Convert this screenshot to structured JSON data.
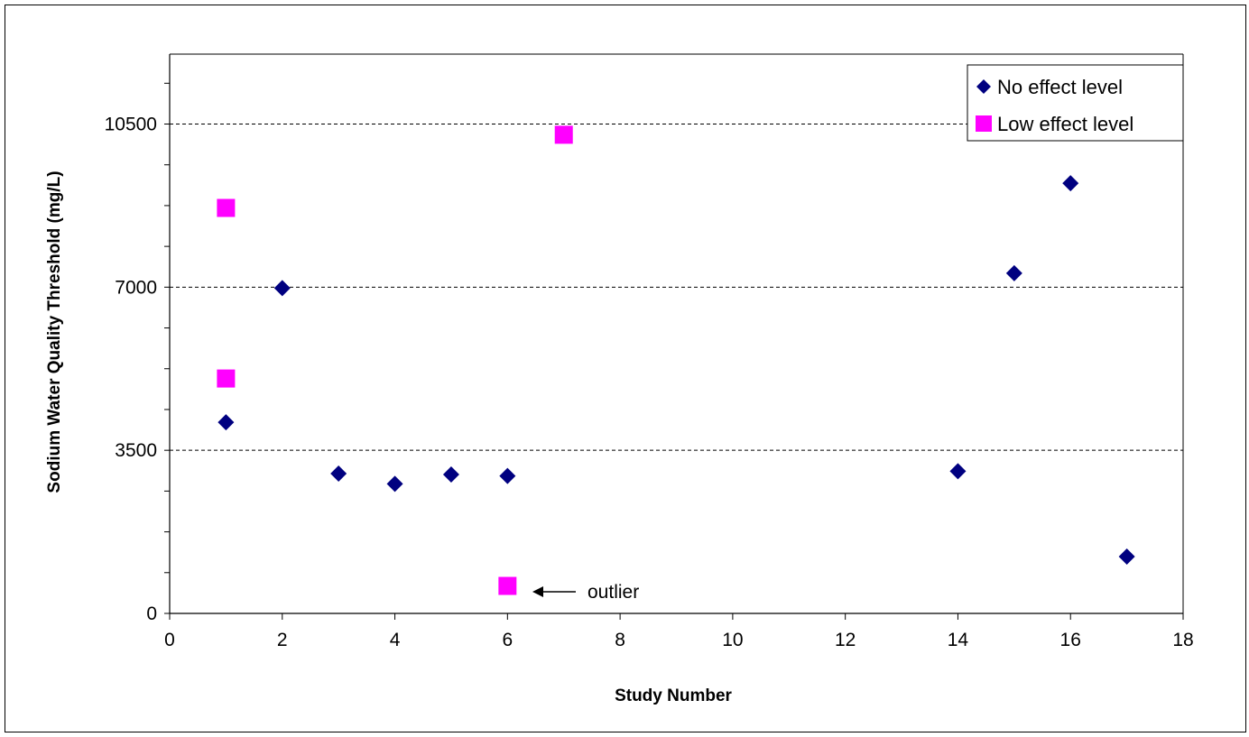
{
  "chart_data": {
    "type": "scatter",
    "title": "",
    "xlabel": "Study Number",
    "ylabel": "Sodium Water Quality Threshold (mg/L)",
    "xlim": [
      0,
      18
    ],
    "ylim": [
      0,
      12000
    ],
    "x_ticks": [
      0,
      2,
      4,
      6,
      8,
      10,
      12,
      14,
      16,
      18
    ],
    "y_ticks": [
      0,
      3500,
      7000,
      10500
    ],
    "x_tick_labels": [
      "0",
      "2",
      "4",
      "6",
      "8",
      "10",
      "12",
      "14",
      "16",
      "18"
    ],
    "y_tick_labels": [
      "0",
      "3500",
      "7000",
      "10500"
    ],
    "grid": "horizontal dashed at y ticks",
    "legend_position": "top-right",
    "series": [
      {
        "name": "No effect level",
        "marker": "diamond",
        "color": "#000080",
        "points": [
          {
            "x": 1,
            "y": 4100
          },
          {
            "x": 2,
            "y": 6980
          },
          {
            "x": 3,
            "y": 3000
          },
          {
            "x": 4,
            "y": 2780
          },
          {
            "x": 5,
            "y": 2980
          },
          {
            "x": 6,
            "y": 2950
          },
          {
            "x": 14,
            "y": 3050
          },
          {
            "x": 15,
            "y": 7300
          },
          {
            "x": 16,
            "y": 9230
          },
          {
            "x": 17,
            "y": 1220
          }
        ]
      },
      {
        "name": "Low effect level",
        "marker": "square",
        "color": "#FF00FF",
        "points": [
          {
            "x": 1,
            "y": 8700
          },
          {
            "x": 1,
            "y": 5040
          },
          {
            "x": 6,
            "y": 590
          },
          {
            "x": 7,
            "y": 10270
          }
        ]
      }
    ],
    "annotations": [
      {
        "text": "outlier",
        "points_to": {
          "x": 6,
          "y": 590
        }
      }
    ]
  }
}
